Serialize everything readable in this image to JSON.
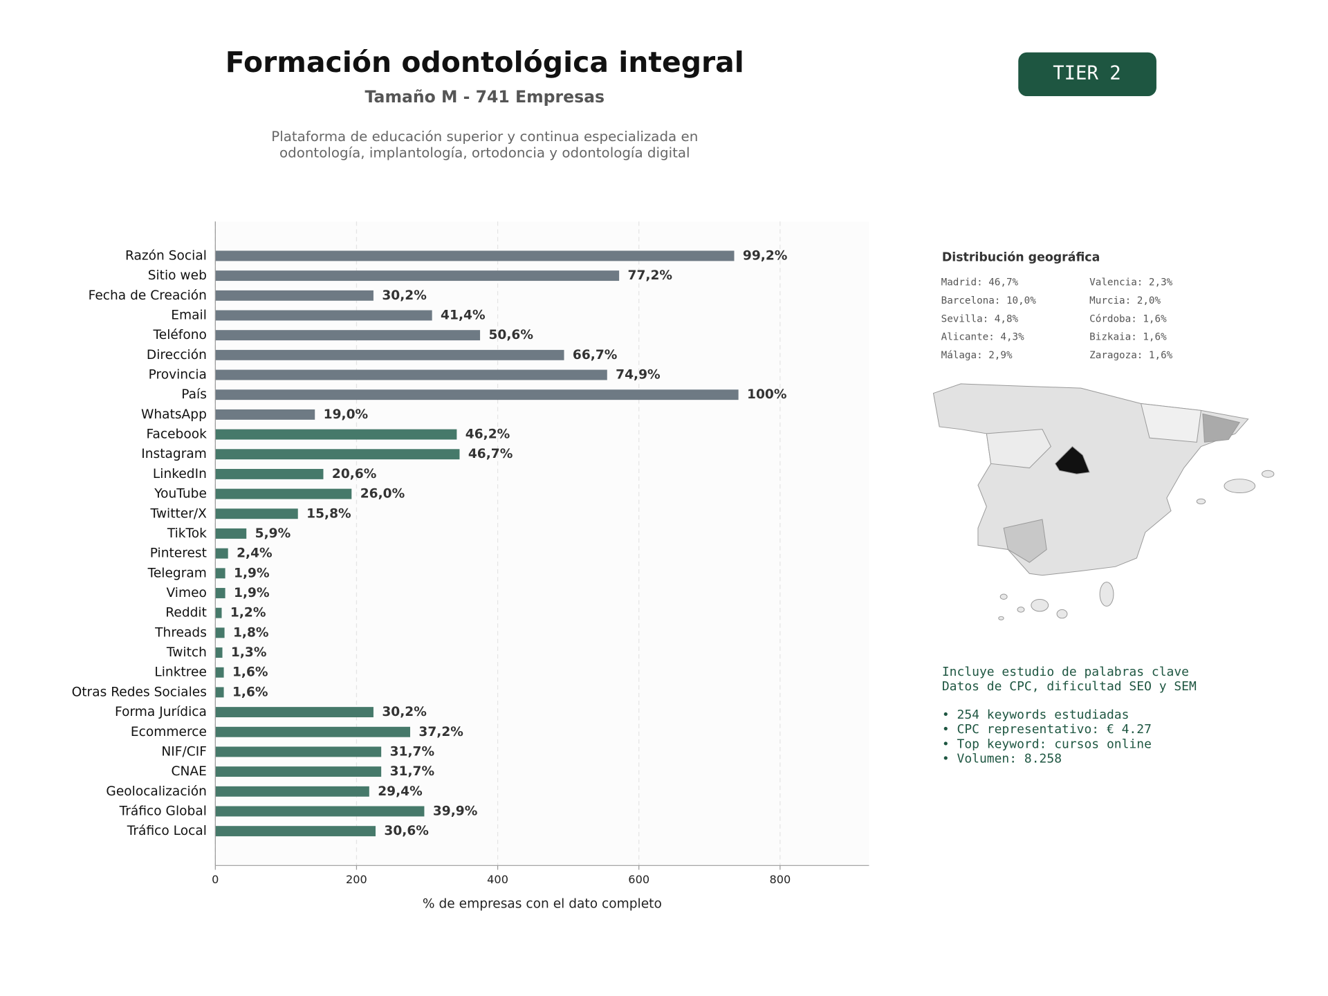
{
  "header": {
    "title": "Formación odontológica integral",
    "subtitle": "Tamaño M - 741 Empresas",
    "description": [
      "Plataforma de educación superior y continua especializada en",
      "odontología, implantología, ortodoncia y odontología digital"
    ]
  },
  "badge": "TIER 2",
  "chart_data": {
    "type": "bar",
    "orientation": "horizontal",
    "categories": [
      "Razón Social",
      "Sitio web",
      "Fecha de Creación",
      "Email",
      "Teléfono",
      "Dirección",
      "Provincia",
      "País",
      "WhatsApp",
      "Facebook",
      "Instagram",
      "LinkedIn",
      "YouTube",
      "Twitter/X",
      "TikTok",
      "Pinterest",
      "Telegram",
      "Vimeo",
      "Reddit",
      "Threads",
      "Twitch",
      "Linktree",
      "Otras Redes Sociales",
      "Forma Jurídica",
      "Ecommerce",
      "NIF/CIF",
      "CNAE",
      "Geolocalización",
      "Tráfico Global",
      "Tráfico Local"
    ],
    "values": [
      735,
      572,
      224,
      307,
      375,
      494,
      555,
      741,
      141,
      342,
      346,
      153,
      193,
      117,
      44,
      18,
      14,
      14,
      9,
      13,
      10,
      12,
      12,
      224,
      276,
      235,
      235,
      218,
      296,
      227
    ],
    "value_labels": [
      "99,2%",
      "77,2%",
      "30,2%",
      "41,4%",
      "50,6%",
      "66,7%",
      "74,9%",
      "100%",
      "19,0%",
      "46,2%",
      "46,7%",
      "20,6%",
      "26,0%",
      "15,8%",
      "5,9%",
      "2,4%",
      "1,9%",
      "1,9%",
      "1,2%",
      "1,8%",
      "1,3%",
      "1,6%",
      "1,6%",
      "30,2%",
      "37,2%",
      "31,7%",
      "31,7%",
      "29,4%",
      "39,9%",
      "30,6%"
    ],
    "colors": [
      "#6e7a84",
      "#6e7a84",
      "#6e7a84",
      "#6e7a84",
      "#6e7a84",
      "#6e7a84",
      "#6e7a84",
      "#6e7a84",
      "#6e7a84",
      "#46796a",
      "#46796a",
      "#46796a",
      "#46796a",
      "#46796a",
      "#46796a",
      "#46796a",
      "#46796a",
      "#46796a",
      "#46796a",
      "#46796a",
      "#46796a",
      "#46796a",
      "#46796a",
      "#46796a",
      "#46796a",
      "#46796a",
      "#46796a",
      "#46796a",
      "#46796a",
      "#46796a"
    ],
    "xlim": [
      0,
      926
    ],
    "xticks": [
      0,
      200,
      400,
      600,
      800
    ],
    "xlabel": "% de empresas con el dato completo",
    "grid": true
  },
  "geo": {
    "title": "Distribución geográfica",
    "entries": [
      "Madrid: 46,7%",
      "Barcelona: 10,0%",
      "Sevilla: 4,8%",
      "Alicante: 4,3%",
      "Málaga: 2,9%",
      "Valencia: 2,3%",
      "Murcia: 2,0%",
      "Córdoba: 1,6%",
      "Bizkaia: 1,6%",
      "Zaragoza: 1,6%"
    ]
  },
  "keywords": {
    "lines": [
      "Incluye estudio de palabras clave",
      "Datos de CPC, dificultad SEO y SEM"
    ],
    "bullets": [
      "• 254 keywords estudiadas",
      "• CPC representativo: € 4.27",
      "• Top keyword: cursos online",
      "• Volumen: 8.258"
    ]
  }
}
